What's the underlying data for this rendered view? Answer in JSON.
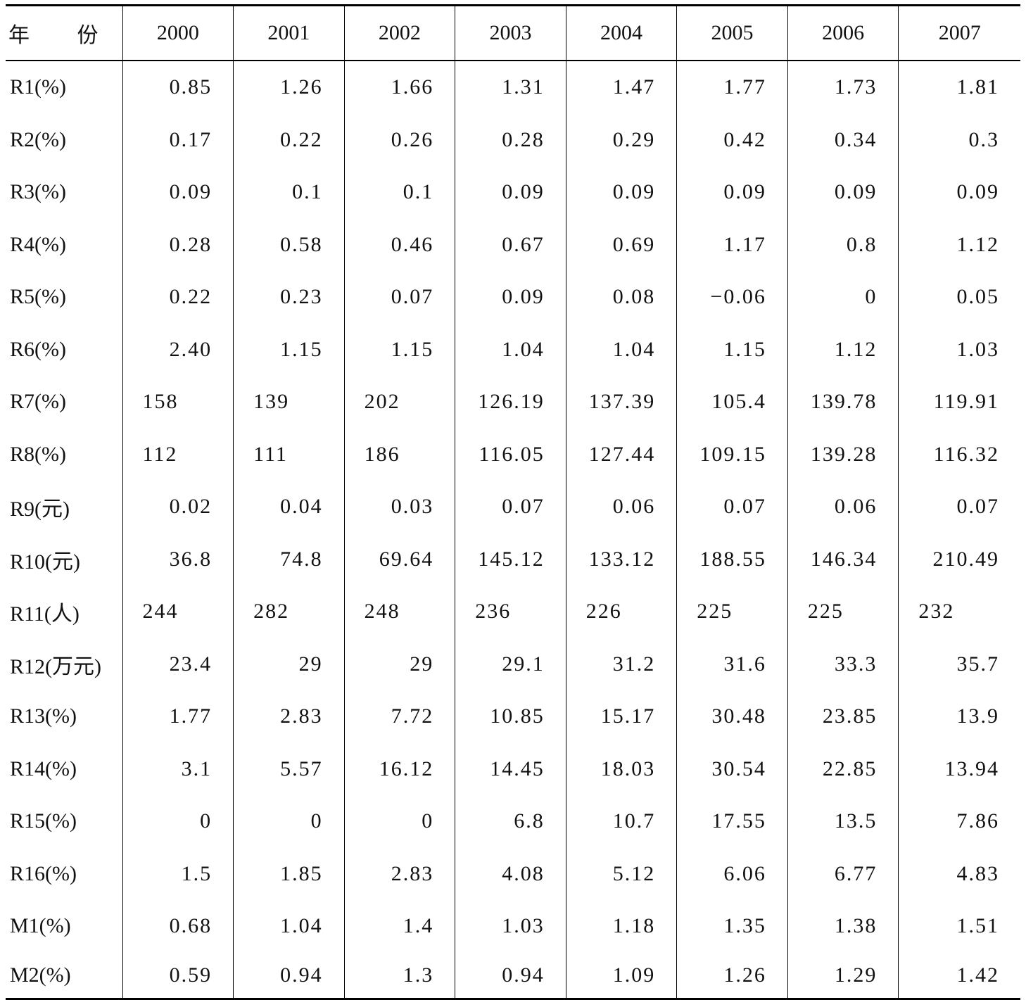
{
  "table": {
    "header": [
      "年 份",
      "2000",
      "2001",
      "2002",
      "2003",
      "2004",
      "2005",
      "2006",
      "2007"
    ],
    "rows": [
      {
        "label": "R1(%)",
        "values": [
          "0.85",
          "1.26",
          "1.66",
          "1.31",
          "1.47",
          "1.77",
          "1.73",
          "1.81"
        ]
      },
      {
        "label": "R2(%)",
        "values": [
          "0.17",
          "0.22",
          "0.26",
          "0.28",
          "0.29",
          "0.42",
          "0.34",
          "0.3"
        ]
      },
      {
        "label": "R3(%)",
        "values": [
          "0.09",
          "0.1",
          "0.1",
          "0.09",
          "0.09",
          "0.09",
          "0.09",
          "0.09"
        ]
      },
      {
        "label": "R4(%)",
        "values": [
          "0.28",
          "0.58",
          "0.46",
          "0.67",
          "0.69",
          "1.17",
          "0.8",
          "1.12"
        ]
      },
      {
        "label": "R5(%)",
        "values": [
          "0.22",
          "0.23",
          "0.07",
          "0.09",
          "0.08",
          "−0.06",
          "0",
          "0.05"
        ]
      },
      {
        "label": "R6(%)",
        "values": [
          "2.40",
          "1.15",
          "1.15",
          "1.04",
          "1.04",
          "1.15",
          "1.12",
          "1.03"
        ]
      },
      {
        "label": "R7(%)",
        "values": [
          "158",
          "139",
          "202",
          "126.19",
          "137.39",
          "105.4",
          "139.78",
          "119.91"
        ]
      },
      {
        "label": "R8(%)",
        "values": [
          "112",
          "111",
          "186",
          "116.05",
          "127.44",
          "109.15",
          "139.28",
          "116.32"
        ]
      },
      {
        "label": "R9(元)",
        "values": [
          "0.02",
          "0.04",
          "0.03",
          "0.07",
          "0.06",
          "0.07",
          "0.06",
          "0.07"
        ]
      },
      {
        "label": "R10(元)",
        "values": [
          "36.8",
          "74.8",
          "69.64",
          "145.12",
          "133.12",
          "188.55",
          "146.34",
          "210.49"
        ]
      },
      {
        "label": "R11(人)",
        "values": [
          "244",
          "282",
          "248",
          "236",
          "226",
          "225",
          "225",
          "232"
        ]
      },
      {
        "label": "R12(万元)",
        "values": [
          "23.4",
          "29",
          "29",
          "29.1",
          "31.2",
          "31.6",
          "33.3",
          "35.7"
        ]
      },
      {
        "label": "R13(%)",
        "values": [
          "1.77",
          "2.83",
          "7.72",
          "10.85",
          "15.17",
          "30.48",
          "23.85",
          "13.9"
        ]
      },
      {
        "label": "R14(%)",
        "values": [
          "3.1",
          "5.57",
          "16.12",
          "14.45",
          "18.03",
          "30.54",
          "22.85",
          "13.94"
        ]
      },
      {
        "label": "R15(%)",
        "values": [
          "0",
          "0",
          "0",
          "6.8",
          "10.7",
          "17.55",
          "13.5",
          "7.86"
        ]
      },
      {
        "label": "R16(%)",
        "values": [
          "1.5",
          "1.85",
          "2.83",
          "4.08",
          "5.12",
          "6.06",
          "6.77",
          "4.83"
        ]
      },
      {
        "label": "M1(%)",
        "values": [
          "0.68",
          "1.04",
          "1.4",
          "1.03",
          "1.18",
          "1.35",
          "1.38",
          "1.51"
        ]
      },
      {
        "label": "M2(%)",
        "values": [
          "0.59",
          "0.94",
          "1.3",
          "0.94",
          "1.09",
          "1.26",
          "1.29",
          "1.42"
        ]
      }
    ]
  }
}
